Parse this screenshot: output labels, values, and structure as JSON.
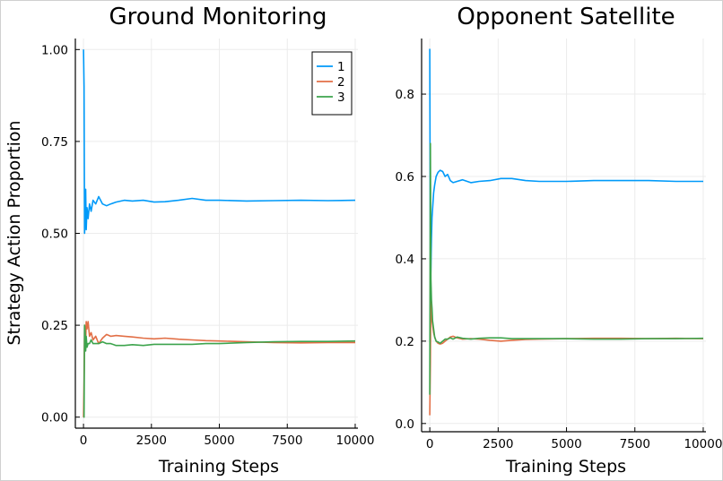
{
  "chart_data": [
    {
      "type": "line",
      "title": "Ground Monitoring",
      "xlabel": "Training Steps",
      "ylabel": "Strategy Action Proportion",
      "xlim": [
        -300,
        10100
      ],
      "ylim": [
        -0.03,
        1.03
      ],
      "xticks": [
        0,
        2500,
        5000,
        7500,
        10000
      ],
      "xtick_labels": [
        "0",
        "2500",
        "5000",
        "7500",
        "10000"
      ],
      "yticks": [
        0.0,
        0.25,
        0.5,
        0.75,
        1.0
      ],
      "ytick_labels": [
        "0.00",
        "0.25",
        "0.50",
        "0.75",
        "1.00"
      ],
      "grid": true,
      "legend": "top-right",
      "series": [
        {
          "name": "1",
          "color": "#009af9",
          "x": [
            0,
            20,
            40,
            60,
            80,
            100,
            130,
            170,
            220,
            280,
            350,
            450,
            560,
            700,
            850,
            1000,
            1200,
            1500,
            1800,
            2200,
            2600,
            3000,
            3500,
            4000,
            4500,
            5000,
            6000,
            7000,
            8000,
            9000,
            10000
          ],
          "y": [
            1.0,
            0.9,
            0.5,
            0.55,
            0.62,
            0.51,
            0.57,
            0.54,
            0.58,
            0.56,
            0.59,
            0.58,
            0.6,
            0.58,
            0.575,
            0.58,
            0.585,
            0.59,
            0.588,
            0.59,
            0.585,
            0.586,
            0.59,
            0.595,
            0.59,
            0.59,
            0.588,
            0.589,
            0.59,
            0.589,
            0.59
          ]
        },
        {
          "name": "2",
          "color": "#e26f46",
          "x": [
            0,
            20,
            40,
            60,
            80,
            100,
            130,
            170,
            220,
            280,
            350,
            450,
            560,
            700,
            850,
            1000,
            1200,
            1500,
            1800,
            2200,
            2600,
            3000,
            3500,
            4000,
            4500,
            5000,
            6000,
            7000,
            8000,
            9000,
            10000
          ],
          "y": [
            0.0,
            0.1,
            0.25,
            0.22,
            0.2,
            0.26,
            0.24,
            0.26,
            0.22,
            0.23,
            0.21,
            0.22,
            0.2,
            0.215,
            0.225,
            0.22,
            0.222,
            0.22,
            0.218,
            0.215,
            0.213,
            0.215,
            0.212,
            0.21,
            0.208,
            0.207,
            0.205,
            0.203,
            0.202,
            0.203,
            0.203
          ]
        },
        {
          "name": "3",
          "color": "#3da44d",
          "x": [
            0,
            20,
            40,
            60,
            80,
            100,
            130,
            170,
            220,
            280,
            350,
            450,
            560,
            700,
            850,
            1000,
            1200,
            1500,
            1800,
            2200,
            2600,
            3000,
            3500,
            4000,
            4500,
            5000,
            6000,
            7000,
            8000,
            9000,
            10000
          ],
          "y": [
            0.0,
            0.0,
            0.25,
            0.23,
            0.18,
            0.22,
            0.19,
            0.2,
            0.2,
            0.21,
            0.2,
            0.2,
            0.2,
            0.205,
            0.2,
            0.2,
            0.195,
            0.195,
            0.197,
            0.195,
            0.198,
            0.198,
            0.198,
            0.198,
            0.2,
            0.2,
            0.203,
            0.205,
            0.206,
            0.206,
            0.207
          ]
        }
      ]
    },
    {
      "type": "line",
      "title": "Opponent Satellite",
      "xlabel": "Training Steps",
      "ylabel": "",
      "xlim": [
        -300,
        10100
      ],
      "ylim": [
        -0.02,
        0.935
      ],
      "xticks": [
        0,
        2500,
        5000,
        7500,
        10000
      ],
      "xtick_labels": [
        "0",
        "2500",
        "5000",
        "7500",
        "10000"
      ],
      "yticks": [
        0.0,
        0.2,
        0.4,
        0.6,
        0.8
      ],
      "ytick_labels": [
        "0.0",
        "0.2",
        "0.4",
        "0.6",
        "0.8"
      ],
      "grid": true,
      "series": [
        {
          "name": "1",
          "color": "#009af9",
          "x": [
            0,
            20,
            40,
            60,
            80,
            100,
            140,
            180,
            230,
            300,
            380,
            470,
            560,
            650,
            750,
            850,
            1000,
            1200,
            1500,
            1800,
            2200,
            2600,
            3000,
            3500,
            4000,
            5000,
            6000,
            7000,
            8000,
            9000,
            10000
          ],
          "y": [
            0.91,
            0.33,
            0.38,
            0.45,
            0.5,
            0.52,
            0.56,
            0.58,
            0.6,
            0.61,
            0.615,
            0.612,
            0.6,
            0.605,
            0.59,
            0.585,
            0.588,
            0.592,
            0.585,
            0.588,
            0.59,
            0.595,
            0.595,
            0.59,
            0.588,
            0.588,
            0.59,
            0.59,
            0.59,
            0.588,
            0.588
          ]
        },
        {
          "name": "2",
          "color": "#e26f46",
          "x": [
            0,
            20,
            40,
            60,
            80,
            100,
            140,
            180,
            230,
            300,
            380,
            470,
            560,
            650,
            750,
            850,
            1000,
            1200,
            1500,
            1800,
            2200,
            2600,
            3000,
            3500,
            4000,
            5000,
            6000,
            7000,
            8000,
            9000,
            10000
          ],
          "y": [
            0.02,
            0.15,
            0.33,
            0.28,
            0.25,
            0.24,
            0.22,
            0.21,
            0.2,
            0.195,
            0.193,
            0.195,
            0.2,
            0.205,
            0.21,
            0.212,
            0.208,
            0.205,
            0.206,
            0.205,
            0.202,
            0.2,
            0.202,
            0.204,
            0.205,
            0.206,
            0.207,
            0.207,
            0.206,
            0.207,
            0.206
          ]
        },
        {
          "name": "3",
          "color": "#3da44d",
          "x": [
            0,
            20,
            40,
            60,
            80,
            100,
            140,
            180,
            230,
            300,
            380,
            470,
            560,
            650,
            750,
            850,
            1000,
            1200,
            1500,
            1800,
            2200,
            2600,
            3000,
            3500,
            4000,
            5000,
            6000,
            7000,
            8000,
            9000,
            10000
          ],
          "y": [
            0.07,
            0.68,
            0.35,
            0.3,
            0.28,
            0.25,
            0.23,
            0.21,
            0.2,
            0.198,
            0.195,
            0.2,
            0.205,
            0.205,
            0.208,
            0.205,
            0.21,
            0.207,
            0.205,
            0.207,
            0.208,
            0.208,
            0.206,
            0.206,
            0.206,
            0.206,
            0.205,
            0.205,
            0.206,
            0.206,
            0.207
          ]
        }
      ]
    }
  ]
}
